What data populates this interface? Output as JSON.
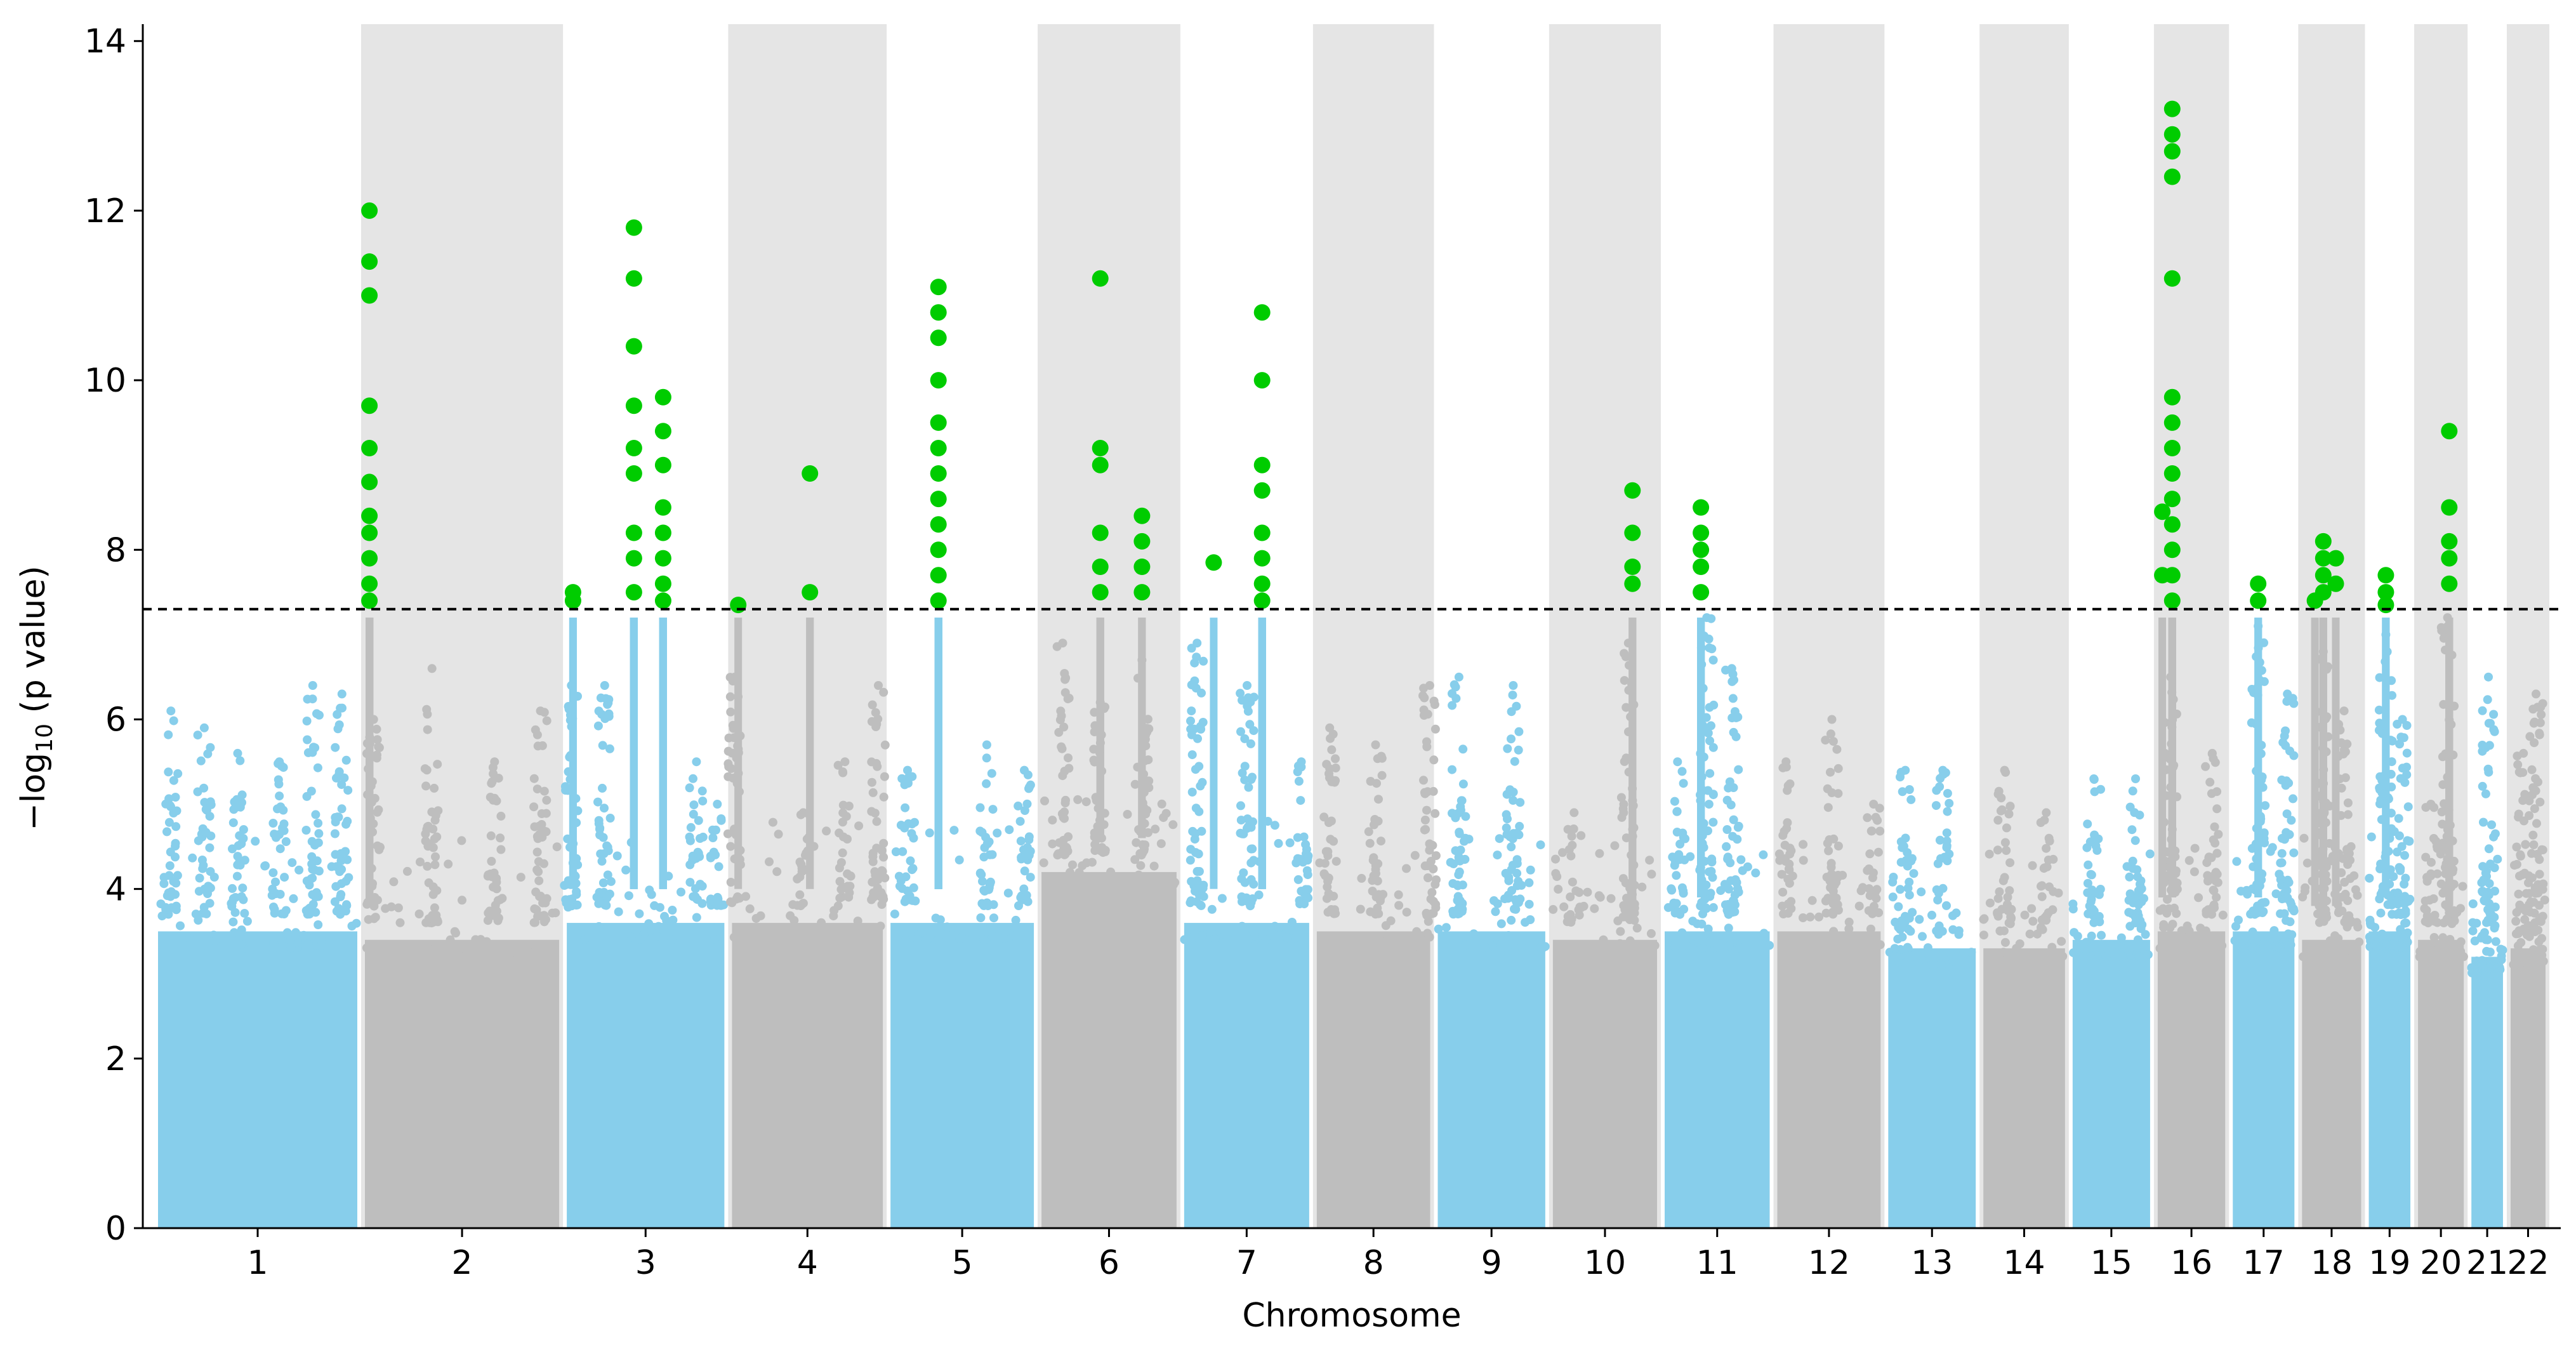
{
  "chart_data": {
    "type": "scatter",
    "subtype": "manhattan",
    "title": "",
    "xlabel": "Chromosome",
    "ylabel_main": "−log",
    "ylabel_sub": "10",
    "ylabel_tail": " (p value)",
    "ylim": [
      0,
      14.2
    ],
    "yticks": [
      0,
      2,
      4,
      6,
      8,
      10,
      12,
      14
    ],
    "genome_wide_threshold": 7.3,
    "grid": false,
    "legend": "none",
    "colors": {
      "odd_chromosome": "#87ceeb",
      "even_chromosome": "#bebebe",
      "significant": "#00cc00",
      "band": "#e5e5e5",
      "threshold_line": "#000000"
    },
    "chromosomes": [
      {
        "label": "1",
        "start": 0,
        "end": 248,
        "bulk_top": 3.9,
        "peaks": [
          [
            20,
            6.1
          ],
          [
            60,
            5.9
          ],
          [
            100,
            5.6
          ],
          [
            150,
            5.5
          ],
          [
            190,
            6.4
          ],
          [
            225,
            6.3
          ]
        ],
        "hits": []
      },
      {
        "label": "2",
        "start": 248,
        "end": 490,
        "bulk_top": 3.8,
        "peaks": [
          [
            15,
            6.0
          ],
          [
            85,
            6.6
          ],
          [
            160,
            5.5
          ],
          [
            215,
            6.1
          ]
        ],
        "hits": [
          [
            10,
            12.0
          ],
          [
            10,
            11.4
          ],
          [
            10,
            11.0
          ],
          [
            10,
            9.7
          ],
          [
            10,
            9.2
          ],
          [
            10,
            8.8
          ],
          [
            10,
            8.4
          ],
          [
            10,
            8.2
          ],
          [
            10,
            7.9
          ],
          [
            10,
            7.6
          ],
          [
            10,
            7.4
          ]
        ]
      },
      {
        "label": "3",
        "start": 490,
        "end": 688,
        "bulk_top": 4.0,
        "peaks": [
          [
            10,
            6.4
          ],
          [
            50,
            6.4
          ],
          [
            160,
            5.5
          ],
          [
            185,
            5.0
          ]
        ],
        "hits": [
          [
            12,
            7.5
          ],
          [
            12,
            7.4
          ],
          [
            85,
            11.8
          ],
          [
            85,
            11.2
          ],
          [
            85,
            10.4
          ],
          [
            85,
            9.7
          ],
          [
            85,
            9.2
          ],
          [
            85,
            8.9
          ],
          [
            85,
            8.2
          ],
          [
            85,
            7.9
          ],
          [
            85,
            7.5
          ],
          [
            120,
            9.8
          ],
          [
            120,
            9.4
          ],
          [
            120,
            9.0
          ],
          [
            120,
            8.5
          ],
          [
            120,
            8.2
          ],
          [
            120,
            7.9
          ],
          [
            120,
            7.6
          ],
          [
            120,
            7.4
          ]
        ]
      },
      {
        "label": "4",
        "start": 688,
        "end": 878,
        "bulk_top": 4.0,
        "peaks": [
          [
            8,
            6.5
          ],
          [
            90,
            4.9
          ],
          [
            140,
            5.5
          ],
          [
            180,
            6.4
          ]
        ],
        "hits": [
          [
            12,
            7.35
          ],
          [
            98,
            8.9
          ],
          [
            98,
            7.5
          ]
        ]
      },
      {
        "label": "5",
        "start": 878,
        "end": 1059,
        "bulk_top": 4.0,
        "peaks": [
          [
            25,
            5.4
          ],
          [
            120,
            5.7
          ],
          [
            165,
            5.4
          ]
        ],
        "hits": [
          [
            62,
            11.1
          ],
          [
            62,
            10.8
          ],
          [
            62,
            10.5
          ],
          [
            62,
            10.0
          ],
          [
            62,
            9.5
          ],
          [
            62,
            9.2
          ],
          [
            62,
            8.9
          ],
          [
            62,
            8.6
          ],
          [
            62,
            8.3
          ],
          [
            62,
            8.0
          ],
          [
            62,
            7.7
          ],
          [
            62,
            7.4
          ]
        ]
      },
      {
        "label": "6",
        "start": 1059,
        "end": 1230,
        "bulk_top": 4.6,
        "peaks": [
          [
            30,
            6.9
          ],
          [
            75,
            6.2
          ],
          [
            125,
            6.7
          ]
        ],
        "hits": [
          [
            75,
            11.2
          ],
          [
            75,
            9.2
          ],
          [
            75,
            9.0
          ],
          [
            75,
            8.2
          ],
          [
            75,
            7.8
          ],
          [
            75,
            7.5
          ],
          [
            125,
            8.4
          ],
          [
            125,
            8.1
          ],
          [
            125,
            7.8
          ],
          [
            125,
            7.5
          ]
        ]
      },
      {
        "label": "7",
        "start": 1230,
        "end": 1389,
        "bulk_top": 4.0,
        "peaks": [
          [
            20,
            6.9
          ],
          [
            80,
            6.4
          ],
          [
            145,
            5.5
          ]
        ],
        "hits": [
          [
            40,
            7.85
          ],
          [
            98,
            10.8
          ],
          [
            98,
            10.0
          ],
          [
            98,
            9.0
          ],
          [
            98,
            8.7
          ],
          [
            98,
            8.2
          ],
          [
            98,
            7.9
          ],
          [
            98,
            7.6
          ],
          [
            98,
            7.4
          ]
        ]
      },
      {
        "label": "8",
        "start": 1389,
        "end": 1534,
        "bulk_top": 3.9,
        "peaks": [
          [
            20,
            5.9
          ],
          [
            75,
            5.7
          ],
          [
            140,
            6.4
          ]
        ],
        "hits": []
      },
      {
        "label": "9",
        "start": 1534,
        "end": 1672,
        "bulk_top": 3.9,
        "peaks": [
          [
            30,
            6.5
          ],
          [
            95,
            6.4
          ]
        ],
        "hits": []
      },
      {
        "label": "10",
        "start": 1672,
        "end": 1806,
        "bulk_top": 3.8,
        "peaks": [
          [
            30,
            4.9
          ],
          [
            95,
            6.9
          ]
        ],
        "hits": [
          [
            100,
            8.7
          ],
          [
            100,
            8.2
          ],
          [
            100,
            7.8
          ],
          [
            100,
            7.6
          ]
        ]
      },
      {
        "label": "11",
        "start": 1806,
        "end": 1941,
        "bulk_top": 3.9,
        "peaks": [
          [
            20,
            5.5
          ],
          [
            55,
            7.2
          ],
          [
            85,
            6.6
          ]
        ],
        "hits": [
          [
            48,
            8.5
          ],
          [
            48,
            8.2
          ],
          [
            48,
            8.0
          ],
          [
            48,
            7.8
          ],
          [
            48,
            7.5
          ]
        ]
      },
      {
        "label": "12",
        "start": 1941,
        "end": 2074,
        "bulk_top": 3.9,
        "peaks": [
          [
            15,
            5.5
          ],
          [
            70,
            6.0
          ],
          [
            120,
            5.0
          ]
        ],
        "hits": []
      },
      {
        "label": "13",
        "start": 2074,
        "end": 2188,
        "bulk_top": 3.7,
        "peaks": [
          [
            25,
            5.4
          ],
          [
            70,
            5.4
          ]
        ],
        "hits": []
      },
      {
        "label": "14",
        "start": 2188,
        "end": 2295,
        "bulk_top": 3.7,
        "peaks": [
          [
            30,
            5.4
          ],
          [
            80,
            4.9
          ]
        ],
        "hits": []
      },
      {
        "label": "15",
        "start": 2295,
        "end": 2397,
        "bulk_top": 3.8,
        "peaks": [
          [
            30,
            5.3
          ],
          [
            80,
            5.3
          ]
        ],
        "hits": []
      },
      {
        "label": "16",
        "start": 2397,
        "end": 2487,
        "bulk_top": 3.9,
        "peaks": [
          [
            20,
            6.5
          ],
          [
            70,
            5.6
          ]
        ],
        "hits": [
          [
            22,
            13.2
          ],
          [
            22,
            12.9
          ],
          [
            22,
            12.7
          ],
          [
            22,
            12.4
          ],
          [
            22,
            11.2
          ],
          [
            22,
            9.8
          ],
          [
            22,
            9.5
          ],
          [
            22,
            9.2
          ],
          [
            22,
            8.9
          ],
          [
            22,
            8.6
          ],
          [
            22,
            8.3
          ],
          [
            22,
            8.0
          ],
          [
            22,
            7.7
          ],
          [
            22,
            7.4
          ],
          [
            10,
            8.45
          ],
          [
            10,
            7.7
          ]
        ]
      },
      {
        "label": "17",
        "start": 2487,
        "end": 2570,
        "bulk_top": 3.9,
        "peaks": [
          [
            35,
            7.1
          ],
          [
            70,
            6.3
          ]
        ],
        "hits": [
          [
            35,
            7.6
          ],
          [
            35,
            7.4
          ]
        ]
      },
      {
        "label": "18",
        "start": 2570,
        "end": 2650,
        "bulk_top": 3.8,
        "peaks": [
          [
            30,
            6.8
          ],
          [
            55,
            6.1
          ]
        ],
        "hits": [
          [
            30,
            8.1
          ],
          [
            30,
            7.9
          ],
          [
            30,
            7.7
          ],
          [
            30,
            7.5
          ],
          [
            45,
            7.9
          ],
          [
            45,
            7.6
          ],
          [
            20,
            7.4
          ]
        ]
      },
      {
        "label": "19",
        "start": 2650,
        "end": 2709,
        "bulk_top": 3.9,
        "peaks": [
          [
            25,
            7.0
          ],
          [
            45,
            6.0
          ]
        ],
        "hits": [
          [
            25,
            7.7
          ],
          [
            25,
            7.5
          ],
          [
            25,
            7.35
          ]
        ]
      },
      {
        "label": "20",
        "start": 2709,
        "end": 2773,
        "bulk_top": 3.8,
        "peaks": [
          [
            40,
            7.2
          ],
          [
            20,
            5.0
          ]
        ],
        "hits": [
          [
            42,
            9.4
          ],
          [
            42,
            8.5
          ],
          [
            42,
            8.1
          ],
          [
            42,
            7.9
          ],
          [
            42,
            7.6
          ]
        ]
      },
      {
        "label": "21",
        "start": 2773,
        "end": 2820,
        "bulk_top": 3.6,
        "peaks": [
          [
            25,
            6.5
          ]
        ],
        "hits": []
      },
      {
        "label": "22",
        "start": 2820,
        "end": 2871,
        "bulk_top": 3.7,
        "peaks": [
          [
            35,
            6.3
          ],
          [
            20,
            5.6
          ]
        ],
        "hits": []
      }
    ]
  }
}
